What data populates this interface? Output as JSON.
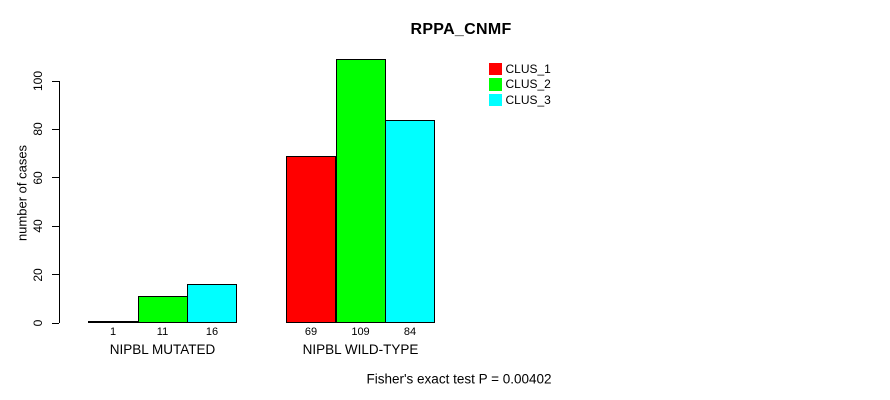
{
  "title": "RPPA_CNMF",
  "footer": "Fisher's exact test P = 0.00402",
  "chart_data": {
    "type": "bar",
    "title": "RPPA_CNMF",
    "categories": [
      "NIPBL MUTATED",
      "NIPBL WILD-TYPE"
    ],
    "series": [
      {
        "name": "CLUS_1",
        "color": "#ff0000",
        "values": [
          1,
          69
        ]
      },
      {
        "name": "CLUS_2",
        "color": "#00ff00",
        "values": [
          11,
          109
        ]
      },
      {
        "name": "CLUS_3",
        "color": "#00ffff",
        "values": [
          16,
          84
        ]
      }
    ],
    "bar_value_labels": [
      [
        "1",
        "11",
        "16"
      ],
      [
        "69",
        "109",
        "84"
      ]
    ],
    "xlabel": "",
    "ylabel": "number of cases",
    "yticks": [
      0,
      20,
      40,
      60,
      80,
      100
    ],
    "ylim": [
      0,
      110
    ],
    "grid": false,
    "legend_position": "top-right",
    "annotation": "Fisher's exact test P = 0.00402"
  }
}
